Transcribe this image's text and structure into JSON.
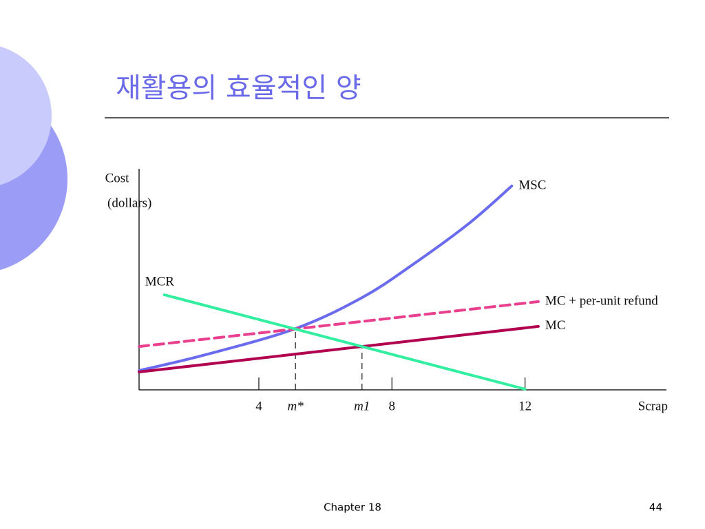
{
  "header": {
    "title": "재활용의 효율적인 양"
  },
  "chart_data": {
    "type": "line",
    "ylabel": [
      "Cost",
      "(dollars)"
    ],
    "xlabel": "Scrap",
    "xlim": [
      0.4,
      16.25
    ],
    "ylim": [
      0,
      100
    ],
    "xticks": [
      4,
      {
        "value": 5.1,
        "label": "m*"
      },
      {
        "value": 7.1,
        "label": "m1"
      },
      8,
      12
    ],
    "series": [
      {
        "name": "MSC",
        "color": "#6b6bee",
        "dashed": false,
        "x": [
          0.4,
          2.4,
          5.1,
          7.1,
          8.6,
          10.3,
          11.6
        ],
        "values": [
          8.7,
          15.9,
          27.7,
          41.7,
          56.4,
          75.1,
          92.2
        ]
      },
      {
        "name": "MC + per-unit refund",
        "color": "#e8408f",
        "dashed": true,
        "x": [
          0.4,
          12.4
        ],
        "values": [
          19.6,
          39.9
        ]
      },
      {
        "name": "MC",
        "color": "#b0004f",
        "dashed": false,
        "x": [
          0.4,
          12.4
        ],
        "values": [
          8.1,
          28.7
        ]
      },
      {
        "name": "MCR",
        "color": "#33eea0",
        "dashed": false,
        "x": [
          1.16,
          12.0
        ],
        "values": [
          43.0,
          0.3
        ]
      }
    ]
  },
  "footer": {
    "chapter": "Chapter 18",
    "page": "44"
  }
}
